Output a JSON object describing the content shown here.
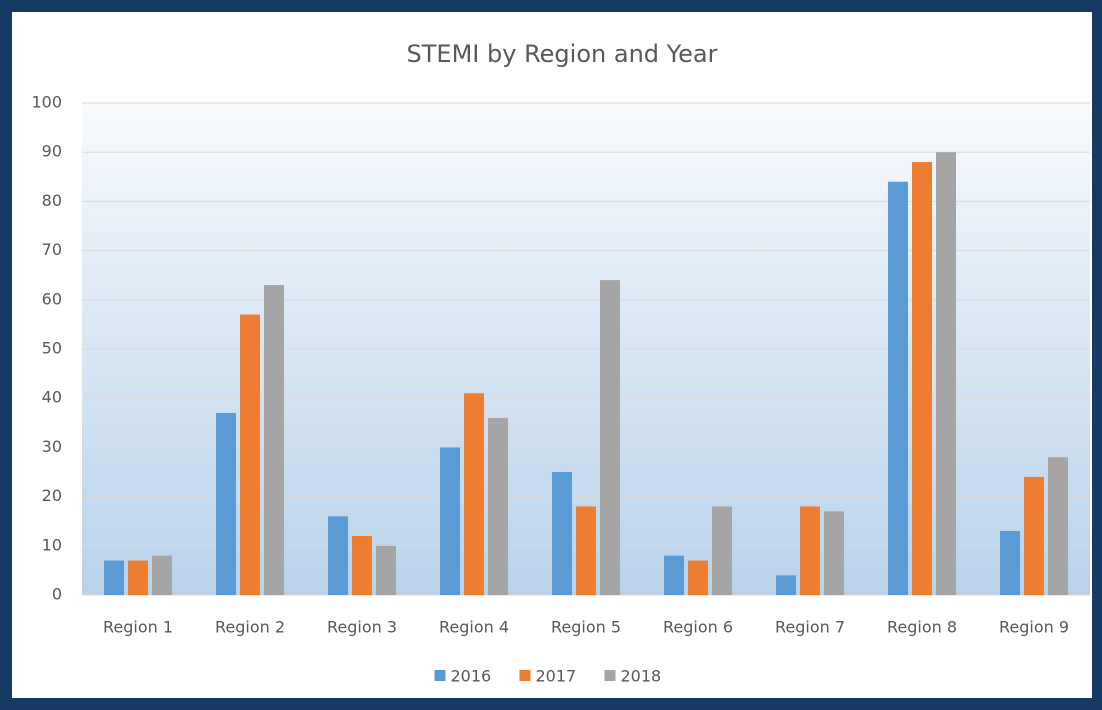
{
  "chart_data": {
    "type": "bar",
    "title": "STEMI by Region and Year",
    "categories": [
      "Region 1",
      "Region 2",
      "Region 3",
      "Region 4",
      "Region 5",
      "Region 6",
      "Region 7",
      "Region 8",
      "Region 9"
    ],
    "series": [
      {
        "name": "2016",
        "color": "#5b9bd5",
        "values": [
          7,
          37,
          16,
          30,
          25,
          8,
          4,
          84,
          13
        ]
      },
      {
        "name": "2017",
        "color": "#ed7d31",
        "values": [
          7,
          57,
          12,
          41,
          18,
          7,
          18,
          88,
          24
        ]
      },
      {
        "name": "2018",
        "color": "#a5a5a5",
        "values": [
          8,
          63,
          10,
          36,
          64,
          18,
          17,
          90,
          28
        ]
      }
    ],
    "ylim": [
      0,
      100
    ],
    "yticks": [
      0,
      10,
      20,
      30,
      40,
      50,
      60,
      70,
      80,
      90,
      100
    ],
    "grid": true,
    "legend": "bottom"
  }
}
